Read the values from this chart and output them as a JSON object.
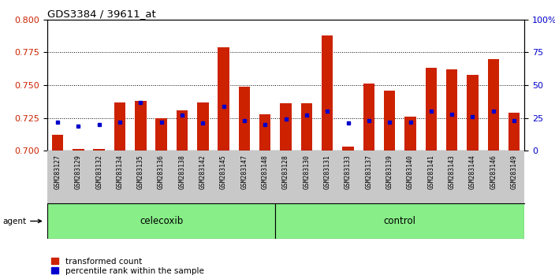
{
  "title": "GDS3384 / 39611_at",
  "samples": [
    "GSM283127",
    "GSM283129",
    "GSM283132",
    "GSM283134",
    "GSM283135",
    "GSM283136",
    "GSM283138",
    "GSM283142",
    "GSM283145",
    "GSM283147",
    "GSM283148",
    "GSM283128",
    "GSM283130",
    "GSM283131",
    "GSM283133",
    "GSM283137",
    "GSM283139",
    "GSM283140",
    "GSM283141",
    "GSM283143",
    "GSM283144",
    "GSM283146",
    "GSM283149"
  ],
  "red_values": [
    0.712,
    0.701,
    0.701,
    0.737,
    0.738,
    0.725,
    0.731,
    0.737,
    0.779,
    0.749,
    0.728,
    0.736,
    0.736,
    0.788,
    0.703,
    0.751,
    0.746,
    0.726,
    0.763,
    0.762,
    0.758,
    0.77,
    0.729
  ],
  "blue_values": [
    0.7215,
    0.719,
    0.72,
    0.722,
    0.737,
    0.722,
    0.727,
    0.721,
    0.734,
    0.723,
    0.72,
    0.724,
    0.727,
    0.73,
    0.721,
    0.723,
    0.722,
    0.722,
    0.73,
    0.728,
    0.726,
    0.73,
    0.723
  ],
  "group1_label": "celecoxib",
  "group1_count": 11,
  "group2_label": "control",
  "group2_count": 12,
  "y_min": 0.7,
  "y_max": 0.8,
  "y_ticks": [
    0.7,
    0.725,
    0.75,
    0.775,
    0.8
  ],
  "y2_ticks": [
    0,
    25,
    50,
    75,
    100
  ],
  "bar_color": "#cc2200",
  "dot_color": "#0000cc",
  "group_color": "#88ee88",
  "tick_bg_color": "#c8c8c8",
  "agent_label": "agent"
}
